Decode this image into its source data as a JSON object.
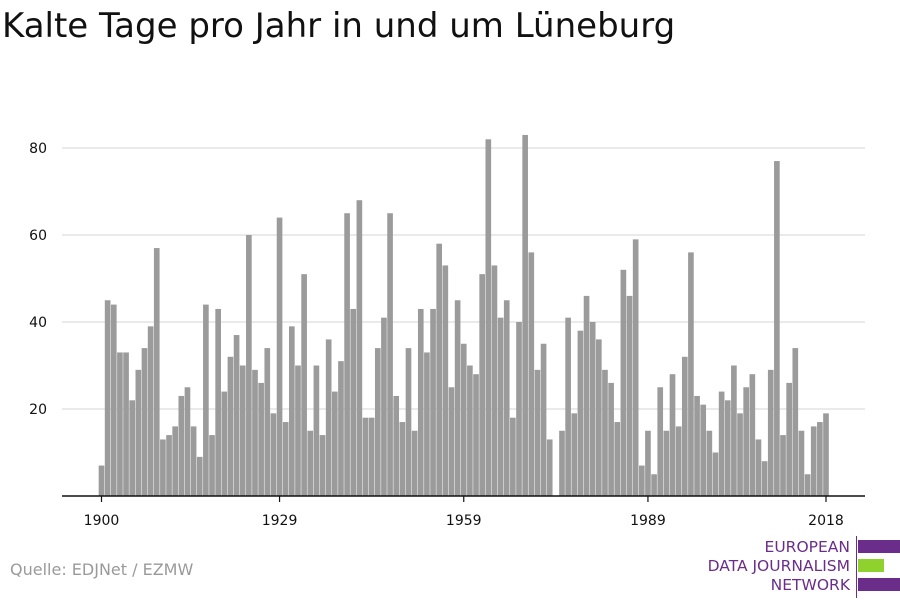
{
  "title": "Kalte Tage pro Jahr in und um Lüneburg",
  "source": "Quelle: EDJNet / EZMW",
  "logo": {
    "lines": [
      "EUROPEAN",
      "DATA JOURNALISM",
      "NETWORK"
    ],
    "colors": {
      "purple": "#6b2d8a",
      "green": "#8fd22e"
    }
  },
  "colors": {
    "bar": "#9b9b9b",
    "grid": "#dddddd",
    "axis": "#111111"
  },
  "chart_data": {
    "type": "bar",
    "title": "Kalte Tage pro Jahr in und um Lüneburg",
    "xlabel": "",
    "ylabel": "",
    "x_ticks": [
      1900,
      1929,
      1959,
      1989,
      2018
    ],
    "y_ticks": [
      20,
      40,
      60,
      80
    ],
    "ylim": [
      0,
      87
    ],
    "xlim": [
      1900,
      2018
    ],
    "grid": true,
    "legend": "none",
    "series": [
      {
        "x": [
          1900,
          1901,
          1902,
          1903,
          1904,
          1905,
          1906,
          1907,
          1908,
          1909,
          1910,
          1911,
          1912,
          1913,
          1914,
          1915,
          1916,
          1917,
          1918,
          1919,
          1920,
          1921,
          1922,
          1923,
          1924,
          1925,
          1926,
          1927,
          1928,
          1929,
          1930,
          1931,
          1932,
          1933,
          1934,
          1935,
          1936,
          1937,
          1938,
          1939,
          1940,
          1941,
          1942,
          1943,
          1944,
          1945,
          1946,
          1947,
          1948,
          1949,
          1950,
          1951,
          1952,
          1953,
          1954,
          1955,
          1956,
          1957,
          1958,
          1959,
          1960,
          1961,
          1962,
          1963,
          1964,
          1965,
          1966,
          1967,
          1968,
          1969,
          1970,
          1971,
          1972,
          1973,
          1974,
          1975,
          1976,
          1977,
          1978,
          1979,
          1980,
          1981,
          1982,
          1983,
          1984,
          1985,
          1986,
          1987,
          1988,
          1989,
          1990,
          1991,
          1992,
          1993,
          1994,
          1995,
          1996,
          1997,
          1998,
          1999,
          2000,
          2001,
          2002,
          2003,
          2004,
          2005,
          2006,
          2007,
          2008,
          2009,
          2010,
          2011,
          2012,
          2013,
          2014,
          2015,
          2016,
          2017,
          2018
        ],
        "values": [
          7,
          45,
          44,
          33,
          33,
          22,
          29,
          34,
          39,
          57,
          13,
          14,
          16,
          23,
          25,
          16,
          9,
          44,
          14,
          43,
          24,
          32,
          37,
          30,
          60,
          29,
          26,
          34,
          19,
          64,
          17,
          39,
          30,
          51,
          15,
          30,
          14,
          36,
          24,
          31,
          65,
          43,
          68,
          18,
          18,
          34,
          41,
          65,
          23,
          17,
          34,
          15,
          43,
          33,
          43,
          58,
          53,
          25,
          45,
          35,
          30,
          28,
          51,
          82,
          53,
          41,
          45,
          18,
          40,
          83,
          56,
          29,
          35,
          13,
          0,
          15,
          41,
          19,
          38,
          46,
          40,
          36,
          29,
          26,
          17,
          52,
          46,
          59,
          7,
          15,
          5,
          25,
          15,
          28,
          16,
          32,
          56,
          23,
          21,
          15,
          10,
          24,
          22,
          30,
          19,
          25,
          28,
          13,
          8,
          29,
          77,
          14,
          26,
          34,
          15,
          5,
          16,
          17,
          19
        ]
      }
    ]
  }
}
